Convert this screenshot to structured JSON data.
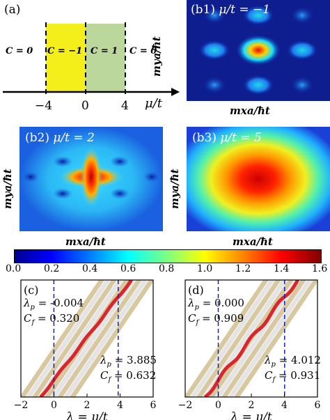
{
  "panel_a": {
    "tag": "(a)",
    "chern_labels": [
      "C = 0",
      "C = −1",
      "C = 1",
      "C = 0"
    ],
    "ticks": [
      "−4",
      "0",
      "4"
    ],
    "axis_label": "μ/t",
    "colors": {
      "yellow": "#f4ee1a",
      "green": "#bcd79c"
    }
  },
  "heatmaps": [
    {
      "tag": "(b1)",
      "formula": "μ/t = −1",
      "ylabel": "mya/ħt",
      "xlabel": "mxa/ħt"
    },
    {
      "tag": "(b2)",
      "formula": "μ/t = 2",
      "ylabel": "mya/ħt",
      "xlabel": "mxa/ħt"
    },
    {
      "tag": "(b3)",
      "formula": "μ/t = 5",
      "ylabel": "mya/ħt",
      "xlabel": "mxa/ħt"
    }
  ],
  "colorbar": {
    "ticks": [
      "0.0",
      "0.2",
      "0.4",
      "0.6",
      "0.8",
      "1.0",
      "1.2",
      "1.4",
      "1.6"
    ],
    "range": [
      0,
      1.6
    ],
    "colormap": "jet"
  },
  "chart_data": [
    {
      "type": "line",
      "tag": "(c)",
      "xlabel": "λ = μ/t",
      "xlim": [
        -2,
        6
      ],
      "xticks": [
        "−2",
        "0",
        "2",
        "4",
        "6"
      ],
      "annotations": [
        {
          "label": "λ_p",
          "value": "-0.004"
        },
        {
          "label": "C_f",
          "value": "0.320"
        },
        {
          "label": "λ_p",
          "value": "3.885"
        },
        {
          "label": "C_f",
          "value": "0.632"
        }
      ],
      "vlines": [
        -0.004,
        3.885
      ],
      "series_color": "#d9262a"
    },
    {
      "type": "line",
      "tag": "(d)",
      "xlabel": "λ = μ/t",
      "xlim": [
        -2,
        6
      ],
      "xticks": [
        "−2",
        "0",
        "2",
        "4",
        "6"
      ],
      "annotations": [
        {
          "label": "λ_p",
          "value": "0.000"
        },
        {
          "label": "C_f",
          "value": "0.909"
        },
        {
          "label": "λ_p",
          "value": "4.012"
        },
        {
          "label": "C_f",
          "value": "0.931"
        }
      ],
      "vlines": [
        0.0,
        4.012
      ],
      "series_color": "#d9262a"
    }
  ]
}
